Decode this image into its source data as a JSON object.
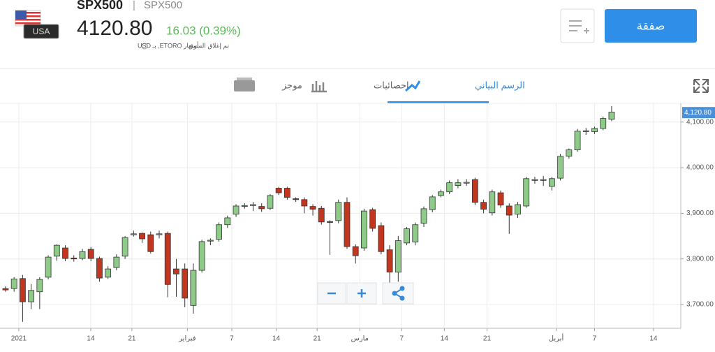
{
  "header": {
    "symbol": "SPX500",
    "separator": "|",
    "name": "SPX500",
    "price": "4120.80",
    "change": "16.03 (0.39%)",
    "market_status": "تم إغلاق السوق",
    "quote_source": "أسعار ETORO, بـ USD",
    "flag_label": "USA",
    "trade_button": "صفقة"
  },
  "tabs": [
    "الرسم البياني",
    "احصائيات",
    "موجز"
  ],
  "chart_data": {
    "type": "candlestick",
    "up_color": "#8fcb88",
    "down_color": "#c2361f",
    "categories": [
      null,
      null,
      null,
      null,
      null,
      null,
      null,
      null,
      null,
      null,
      null,
      null,
      null,
      null,
      null,
      null,
      null,
      null,
      null,
      null,
      null,
      null,
      null,
      null,
      null,
      null,
      null,
      null,
      null,
      null,
      null,
      null,
      null,
      null,
      null,
      null,
      null,
      null,
      null,
      null,
      null,
      null,
      null,
      null,
      null,
      null,
      null,
      null,
      null,
      null,
      null,
      null,
      null,
      null,
      null,
      null,
      null,
      null,
      null,
      null,
      null,
      null,
      null,
      null,
      null,
      null,
      null,
      null,
      null,
      null,
      null,
      null
    ],
    "open": [
      3735,
      3735,
      3757,
      3706,
      3728,
      3760,
      3806,
      3824,
      3802,
      3801,
      3821,
      3801,
      3760,
      3781,
      3806,
      3853,
      3856,
      3853,
      3853,
      3856,
      3778,
      3778,
      3698,
      3775,
      3839,
      3843,
      3875,
      3898,
      3915,
      3917,
      3915,
      3911,
      3955,
      3955,
      3932,
      3930,
      3915,
      3911,
      3882,
      3884,
      3924,
      3827,
      3824,
      3908,
      3873,
      3820,
      3771,
      3835,
      3837,
      3878,
      3908,
      3939,
      3947,
      3961,
      3966,
      3974,
      3924,
      3901,
      3945,
      3916,
      3898,
      3916,
      3972,
      3972,
      3959,
      3977,
      4025,
      4039,
      4079,
      4079,
      4086,
      4106
    ],
    "high": [
      3740,
      3760,
      3765,
      3745,
      3760,
      3808,
      3832,
      3830,
      3808,
      3822,
      3826,
      3805,
      3784,
      3810,
      3850,
      3862,
      3858,
      3860,
      3862,
      3860,
      3800,
      3790,
      3790,
      3842,
      3845,
      3880,
      3895,
      3920,
      3922,
      3925,
      3922,
      3942,
      3958,
      3958,
      3935,
      3935,
      3920,
      3916,
      3885,
      3930,
      3935,
      3832,
      3910,
      3912,
      3880,
      3830,
      3850,
      3870,
      3880,
      3915,
      3940,
      3952,
      3972,
      3975,
      3975,
      3978,
      3930,
      3952,
      3950,
      3922,
      3925,
      3980,
      3980,
      3982,
      3980,
      4030,
      4042,
      4085,
      4087,
      4090,
      4112,
      4135
    ],
    "low": [
      3728,
      3728,
      3662,
      3690,
      3690,
      3755,
      3796,
      3795,
      3794,
      3797,
      3795,
      3750,
      3756,
      3775,
      3800,
      3849,
      3835,
      3812,
      3845,
      3716,
      3717,
      3694,
      3680,
      3770,
      3830,
      3838,
      3868,
      3892,
      3910,
      3905,
      3903,
      3907,
      3940,
      3930,
      3925,
      3900,
      3895,
      3875,
      3809,
      3878,
      3822,
      3790,
      3818,
      3860,
      3810,
      3738,
      3750,
      3830,
      3830,
      3870,
      3902,
      3935,
      3942,
      3955,
      3960,
      3918,
      3900,
      3895,
      3912,
      3855,
      3890,
      3912,
      3965,
      3960,
      3950,
      3972,
      4020,
      4035,
      4072,
      4074,
      4082,
      4102
    ],
    "close": [
      3732,
      3756,
      3706,
      3731,
      3755,
      3804,
      3830,
      3801,
      3800,
      3816,
      3801,
      3758,
      3778,
      3804,
      3847,
      3855,
      3844,
      3816,
      3855,
      3744,
      3767,
      3714,
      3775,
      3838,
      3841,
      3875,
      3890,
      3916,
      3917,
      3919,
      3910,
      3939,
      3945,
      3935,
      3930,
      3916,
      3909,
      3881,
      3880,
      3924,
      3827,
      3807,
      3905,
      3867,
      3816,
      3771,
      3840,
      3866,
      3875,
      3910,
      3936,
      3947,
      3967,
      3967,
      3968,
      3924,
      3909,
      3947,
      3918,
      3896,
      3919,
      3976,
      3974,
      3974,
      3976,
      4025,
      4039,
      4080,
      4081,
      4086,
      4108,
      4122
    ],
    "ylim": [
      3648,
      4141
    ],
    "yticks": [
      {
        "value": 3700,
        "label": "3,700.00"
      },
      {
        "value": 3800,
        "label": "3,800.00"
      },
      {
        "value": 3900,
        "label": "3,900.00"
      },
      {
        "value": 4000,
        "label": "4,000.00"
      },
      {
        "value": 4100,
        "label": "4,100.00"
      }
    ],
    "xlim": [
      -0.65,
      79.1
    ],
    "xticks": [
      {
        "value": 1.55,
        "label": "2021"
      },
      {
        "value": 9.98,
        "label": "14"
      },
      {
        "value": 14.8,
        "label": "21"
      },
      {
        "value": 21.3,
        "label": "فبراير"
      },
      {
        "value": 26.5,
        "label": "7"
      },
      {
        "value": 31.7,
        "label": "14"
      },
      {
        "value": 36.5,
        "label": "21"
      },
      {
        "value": 41.5,
        "label": "مارس"
      },
      {
        "value": 46.4,
        "label": "7"
      },
      {
        "value": 51.4,
        "label": "14"
      },
      {
        "value": 56.4,
        "label": "21"
      },
      {
        "value": 64.5,
        "label": "أبريل"
      },
      {
        "value": 69,
        "label": "7"
      },
      {
        "value": 75.9,
        "label": "14"
      }
    ],
    "last_price": {
      "value": 4120.8,
      "label": "4,120.80"
    },
    "grid": true
  }
}
